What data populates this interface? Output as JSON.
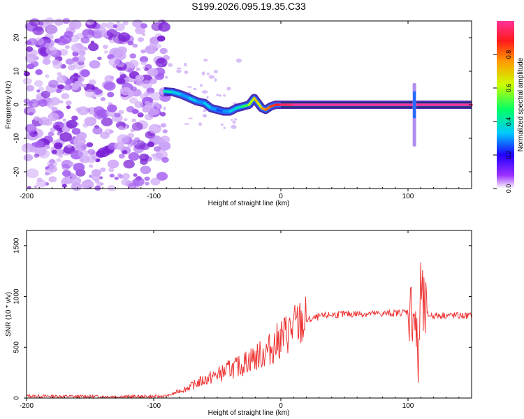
{
  "figure_title": "S199.2026.095.19.35.C33",
  "colors": {
    "line": "#ee3333",
    "noise": "#8a2be2",
    "axis": "#000000"
  },
  "chart_data": [
    {
      "type": "heatmap",
      "title": "S199.2026.095.19.35.C33",
      "xlabel": "Height of straight line (km)",
      "ylabel": "Frequency (Hz)",
      "xlim": [
        -200,
        150
      ],
      "ylim": [
        -25,
        25
      ],
      "xticks": [
        -200,
        -100,
        0,
        100
      ],
      "xtick_labels": [
        "-200",
        "-100",
        "0",
        "100"
      ],
      "yticks": [
        -20,
        -10,
        0,
        10,
        20
      ],
      "ytick_labels": [
        "-20",
        "-10",
        "0",
        "10",
        "20"
      ],
      "colorbar": {
        "label": "Normalized spectral amplitude",
        "range": [
          0,
          1
        ],
        "ticks": [
          0.0,
          0.2,
          0.4,
          0.6,
          0.8
        ],
        "tick_labels": [
          "0.0",
          "0.2",
          "0.4",
          "0.6",
          "0.8"
        ],
        "colormap": "rainbow"
      },
      "noise_region_x": [
        -200,
        -90
      ],
      "ridge": {
        "x": [
          -92,
          -85,
          -78,
          -72,
          -66,
          -60,
          -55,
          -50,
          -45,
          -40,
          -35,
          -30,
          -25,
          -21,
          -18,
          -15,
          -12,
          -8,
          -4,
          0,
          10,
          20,
          50,
          80,
          110,
          150
        ],
        "freq": [
          4,
          3.8,
          3,
          2,
          1,
          0.5,
          -1,
          -1.5,
          -2,
          -2,
          -1,
          -0.5,
          0,
          2,
          0.5,
          -1,
          -1.5,
          -0.5,
          0,
          0,
          0,
          0,
          0,
          0,
          0,
          0
        ],
        "amplitude": [
          0.4,
          0.35,
          0.3,
          0.35,
          0.3,
          0.35,
          0.3,
          0.25,
          0.3,
          0.35,
          0.4,
          0.5,
          0.6,
          0.7,
          0.65,
          0.75,
          0.8,
          0.85,
          0.9,
          0.95,
          1.0,
          1.0,
          1.0,
          1.0,
          1.0,
          1.0
        ]
      },
      "spike": {
        "x": 105,
        "freq_range": [
          -12,
          6
        ]
      }
    },
    {
      "type": "line",
      "title": "",
      "xlabel": "Height of straight line (km)",
      "ylabel": "SNR (10 * v/v)",
      "xlim": [
        -200,
        150
      ],
      "ylim": [
        0,
        1650
      ],
      "xticks": [
        -200,
        -100,
        0,
        100
      ],
      "xtick_labels": [
        "-200",
        "-100",
        "0",
        "100"
      ],
      "yticks": [
        0,
        500,
        1000,
        1500
      ],
      "ytick_labels": [
        "0",
        "500",
        "1000",
        "1500"
      ],
      "series": [
        {
          "name": "SNR",
          "x": [
            -200,
            -150,
            -100,
            -90,
            -85,
            -80,
            -75,
            -70,
            -65,
            -60,
            -55,
            -50,
            -45,
            -40,
            -35,
            -30,
            -25,
            -20,
            -15,
            -10,
            -5,
            0,
            5,
            10,
            15,
            20,
            25,
            30,
            40,
            50,
            60,
            70,
            80,
            90,
            100,
            105,
            108,
            110,
            112,
            115,
            120,
            130,
            140,
            150
          ],
          "y": [
            20,
            15,
            15,
            20,
            40,
            70,
            90,
            120,
            150,
            180,
            200,
            230,
            250,
            290,
            300,
            330,
            380,
            400,
            430,
            470,
            520,
            590,
            640,
            690,
            730,
            760,
            780,
            800,
            820,
            825,
            830,
            830,
            830,
            835,
            850,
            870,
            300,
            1100,
            850,
            820,
            810,
            815,
            810,
            810
          ]
        }
      ]
    }
  ]
}
